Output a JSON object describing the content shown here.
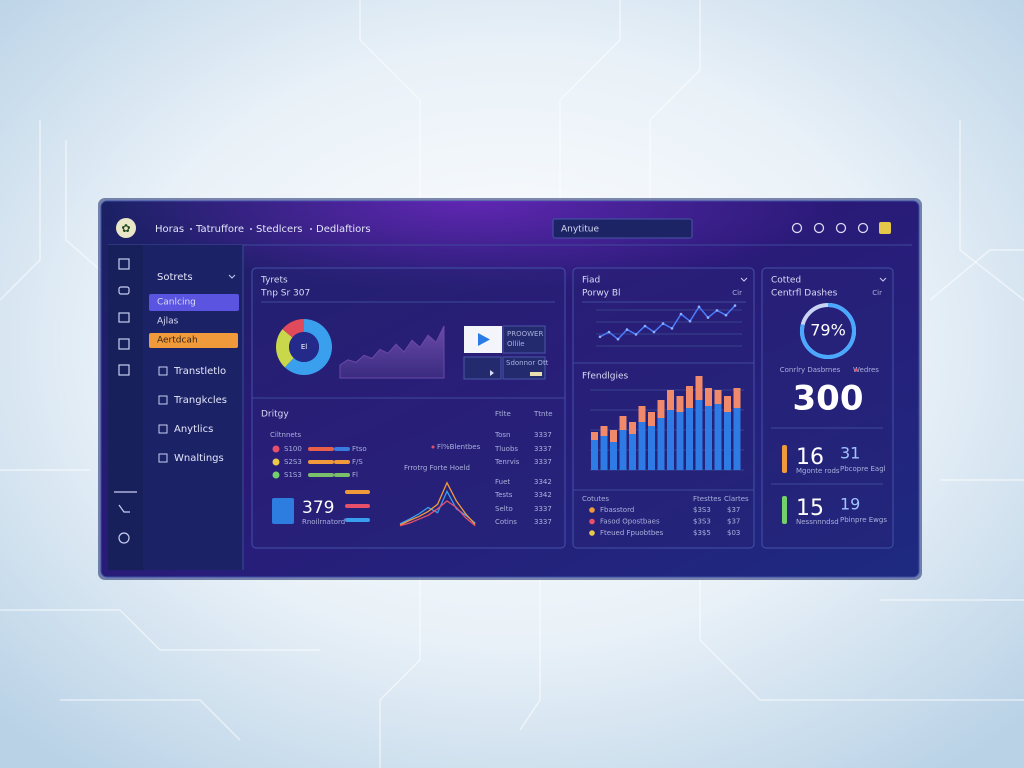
{
  "header": {
    "breadcrumbs": [
      "Horas",
      "Tatruffore",
      "Stedlcers",
      "Dedlaftiors"
    ],
    "search": "Anytitue"
  },
  "sidebar": {
    "section": "Sotrets",
    "items": [
      "Canlcing",
      "Ajlas",
      "Aertdcah",
      "Transtletlo",
      "Trangkcles",
      "Anytlics",
      "Wnaltings"
    ]
  },
  "overview": {
    "title": "Tyrets",
    "subtitle": "Tnp Sr 307",
    "donut": {
      "label": "El",
      "values": [
        62,
        24,
        14
      ],
      "colors": [
        "#3aa0ee",
        "#c9d84a",
        "#e04a5a"
      ]
    },
    "area": {
      "color": "#6a4aa8",
      "values": [
        20,
        28,
        24,
        35,
        30,
        44,
        38,
        52,
        40,
        58,
        47,
        66,
        55,
        80
      ]
    },
    "video": {
      "lines": [
        "PROOWER",
        "Ollile"
      ],
      "caption": "Sdonnor Ott"
    }
  },
  "activity": {
    "title": "Dritgy",
    "columns": [
      "Ftlte",
      "Ttnte"
    ],
    "subtitle": "Ciltnnets",
    "legend": [
      {
        "label": "S100",
        "value": "Ftso",
        "color": "#e8506a"
      },
      {
        "label": "S2S3",
        "value": "F/S",
        "color": "#e8c94a"
      },
      {
        "label": "S1S3",
        "value": "Fl",
        "color": "#74d06a"
      }
    ],
    "note": "Fl%Blentbes",
    "metric": {
      "value": "379",
      "label": "Rnoilrnatord"
    },
    "trend": {
      "title": "Frrotrg Forte Hoeld",
      "series": [
        {
          "color": "#3aa0ee",
          "values": [
            5,
            12,
            20,
            30,
            22,
            55,
            28,
            18,
            6
          ]
        },
        {
          "color": "#f09a3c",
          "values": [
            3,
            10,
            16,
            24,
            35,
            68,
            40,
            20,
            4
          ]
        },
        {
          "color": "#e8506a",
          "values": [
            2,
            6,
            12,
            18,
            28,
            40,
            30,
            14,
            2
          ]
        }
      ]
    },
    "rows": [
      [
        "Tosn",
        "3337"
      ],
      [
        "Tluobs",
        "3337"
      ],
      [
        "Tenrvis",
        "3337"
      ],
      [
        "Fuet",
        "3342"
      ],
      [
        "Tests",
        "3342"
      ],
      [
        "Selto",
        "3337"
      ],
      [
        "Cotins",
        "3337"
      ]
    ]
  },
  "power": {
    "title": "Fiad",
    "subtitle": "Porwy Bl",
    "action": "Cir",
    "line": {
      "color": "#4a7cff",
      "values": [
        22,
        30,
        18,
        34,
        26,
        40,
        30,
        44,
        36,
        60,
        48,
        72,
        54,
        66,
        58,
        74
      ]
    },
    "bars_title": "Ffendlgies",
    "bars": [
      {
        "color": "#2f7be6",
        "values": [
          30,
          34,
          28,
          40,
          36,
          48,
          44,
          52,
          60,
          58,
          62,
          70,
          64,
          66,
          58,
          62
        ]
      },
      {
        "color": "#f08a6a",
        "values": [
          8,
          10,
          12,
          14,
          12,
          16,
          14,
          18,
          20,
          16,
          22,
          24,
          18,
          14,
          16,
          20
        ]
      }
    ],
    "list": {
      "columns": [
        "Cotutes",
        "Ftesttes",
        "Clartes"
      ],
      "rows": [
        {
          "label": "Fbasstord",
          "a": "$3S3",
          "b": "$37",
          "color": "#f09a3c"
        },
        {
          "label": "Fasod Opostbaes",
          "a": "$3S3",
          "b": "$37",
          "color": "#e8506a"
        },
        {
          "label": "Fteued Fpuobtbes",
          "a": "$3$5",
          "b": "$03",
          "color": "#e8c94a"
        }
      ]
    }
  },
  "status": {
    "title": "Cotted",
    "subtitle": "Centrfl Dashes",
    "action": "Cir",
    "gauge": {
      "value": 79,
      "label": "79%",
      "color": "#4aa8ff"
    },
    "gauge_caption": "Conrlry Dasbrnes",
    "gauge_tag": "Wedres",
    "total": "300",
    "stats": [
      {
        "value": "16",
        "label": "Mgonte rods",
        "side": "31",
        "side_label": "Pbcopre Eagl",
        "color": "#f09a3c"
      },
      {
        "value": "15",
        "label": "Nessnnndsd",
        "side": "19",
        "side_label": "Pbinpre Ewgs",
        "color": "#74d06a"
      }
    ]
  }
}
